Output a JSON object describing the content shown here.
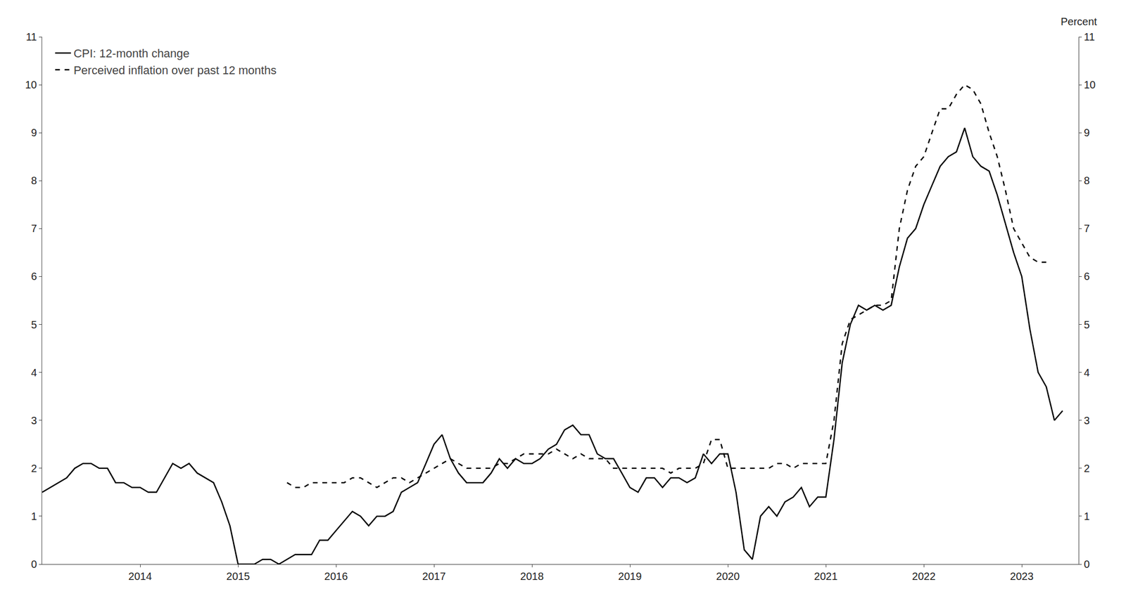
{
  "chart_data": {
    "type": "line",
    "y2label": "Percent",
    "x": [
      2013.0,
      2013.083,
      2013.167,
      2013.25,
      2013.333,
      2013.417,
      2013.5,
      2013.583,
      2013.667,
      2013.75,
      2013.833,
      2013.917,
      2014.0,
      2014.083,
      2014.167,
      2014.25,
      2014.333,
      2014.417,
      2014.5,
      2014.583,
      2014.667,
      2014.75,
      2014.833,
      2014.917,
      2015.0,
      2015.083,
      2015.167,
      2015.25,
      2015.333,
      2015.417,
      2015.5,
      2015.583,
      2015.667,
      2015.75,
      2015.833,
      2015.917,
      2016.0,
      2016.083,
      2016.167,
      2016.25,
      2016.333,
      2016.417,
      2016.5,
      2016.583,
      2016.667,
      2016.75,
      2016.833,
      2016.917,
      2017.0,
      2017.083,
      2017.167,
      2017.25,
      2017.333,
      2017.417,
      2017.5,
      2017.583,
      2017.667,
      2017.75,
      2017.833,
      2017.917,
      2018.0,
      2018.083,
      2018.167,
      2018.25,
      2018.333,
      2018.417,
      2018.5,
      2018.583,
      2018.667,
      2018.75,
      2018.833,
      2018.917,
      2019.0,
      2019.083,
      2019.167,
      2019.25,
      2019.333,
      2019.417,
      2019.5,
      2019.583,
      2019.667,
      2019.75,
      2019.833,
      2019.917,
      2020.0,
      2020.083,
      2020.167,
      2020.25,
      2020.333,
      2020.417,
      2020.5,
      2020.583,
      2020.667,
      2020.75,
      2020.833,
      2020.917,
      2021.0,
      2021.083,
      2021.167,
      2021.25,
      2021.333,
      2021.417,
      2021.5,
      2021.583,
      2021.667,
      2021.75,
      2021.833,
      2021.917,
      2022.0,
      2022.083,
      2022.167,
      2022.25,
      2022.333,
      2022.417,
      2022.5,
      2022.583,
      2022.667,
      2022.75,
      2022.833,
      2022.917,
      2023.0,
      2023.083,
      2023.167,
      2023.25,
      2023.333,
      2023.417
    ],
    "series": [
      {
        "name": "CPI: 12-month change",
        "color": "#000000",
        "line_style": "solid",
        "values": [
          1.5,
          1.6,
          1.7,
          1.8,
          2.0,
          2.1,
          2.1,
          2.0,
          2.0,
          1.7,
          1.7,
          1.6,
          1.6,
          1.5,
          1.5,
          1.8,
          2.1,
          2.0,
          2.1,
          1.9,
          1.8,
          1.7,
          1.3,
          0.8,
          0.0,
          0.0,
          0.0,
          0.1,
          0.1,
          0.0,
          0.1,
          0.2,
          0.2,
          0.2,
          0.5,
          0.5,
          0.7,
          0.9,
          1.1,
          1.0,
          0.8,
          1.0,
          1.0,
          1.1,
          1.5,
          1.6,
          1.7,
          2.1,
          2.5,
          2.7,
          2.2,
          1.9,
          1.7,
          1.7,
          1.7,
          1.9,
          2.2,
          2.0,
          2.2,
          2.1,
          2.1,
          2.2,
          2.4,
          2.5,
          2.8,
          2.9,
          2.7,
          2.7,
          2.3,
          2.2,
          2.2,
          1.9,
          1.6,
          1.5,
          1.8,
          1.8,
          1.6,
          1.8,
          1.8,
          1.7,
          1.8,
          2.3,
          2.1,
          2.3,
          2.3,
          1.5,
          0.3,
          0.1,
          1.0,
          1.2,
          1.0,
          1.3,
          1.4,
          1.6,
          1.2,
          1.4,
          1.4,
          2.6,
          4.2,
          5.0,
          5.4,
          5.3,
          5.4,
          5.3,
          5.4,
          6.2,
          6.8,
          7.0,
          7.5,
          7.9,
          8.3,
          8.5,
          8.6,
          9.1,
          8.5,
          8.3,
          8.2,
          7.7,
          7.1,
          6.5,
          6.0,
          4.9,
          4.0,
          3.7,
          3.0,
          3.2
        ]
      },
      {
        "name": "Perceived inflation over past 12 months",
        "color": "#000000",
        "line_style": "dashed",
        "values": [
          null,
          null,
          null,
          null,
          null,
          null,
          null,
          null,
          null,
          null,
          null,
          null,
          null,
          null,
          null,
          null,
          null,
          null,
          null,
          null,
          null,
          null,
          null,
          null,
          null,
          null,
          null,
          null,
          null,
          null,
          1.7,
          1.6,
          1.6,
          1.7,
          1.7,
          1.7,
          1.7,
          1.7,
          1.8,
          1.8,
          1.7,
          1.6,
          1.7,
          1.8,
          1.8,
          1.7,
          1.8,
          1.9,
          2.0,
          2.1,
          2.2,
          2.1,
          2.0,
          2.0,
          2.0,
          2.0,
          2.1,
          2.1,
          2.2,
          2.3,
          2.3,
          2.3,
          2.3,
          2.4,
          2.3,
          2.2,
          2.3,
          2.2,
          2.2,
          2.2,
          2.0,
          2.0,
          2.0,
          2.0,
          2.0,
          2.0,
          2.0,
          1.9,
          2.0,
          2.0,
          2.0,
          2.1,
          2.6,
          2.6,
          2.0,
          2.0,
          2.0,
          2.0,
          2.0,
          2.0,
          2.1,
          2.1,
          2.0,
          2.1,
          2.1,
          2.1,
          2.1,
          3.0,
          4.6,
          5.1,
          5.2,
          5.3,
          5.4,
          5.4,
          5.5,
          7.0,
          7.8,
          8.3,
          8.5,
          9.0,
          9.5,
          9.5,
          9.8,
          10.0,
          9.9,
          9.6,
          9.0,
          8.5,
          7.8,
          7.0,
          6.7,
          6.4,
          6.3,
          6.3,
          null,
          null
        ]
      }
    ],
    "xlim": [
      2013.0,
      2023.58
    ],
    "xticks": [
      2014,
      2015,
      2016,
      2017,
      2018,
      2019,
      2020,
      2021,
      2022,
      2023
    ],
    "ylim": [
      0,
      11
    ],
    "yticks": [
      0,
      1,
      2,
      3,
      4,
      5,
      6,
      7,
      8,
      9,
      10,
      11
    ],
    "y2lim": [
      0,
      11
    ],
    "y2ticks": [
      0,
      1,
      2,
      3,
      4,
      5,
      6,
      7,
      8,
      9,
      10,
      11
    ],
    "grid": false,
    "legend": "upper left"
  }
}
